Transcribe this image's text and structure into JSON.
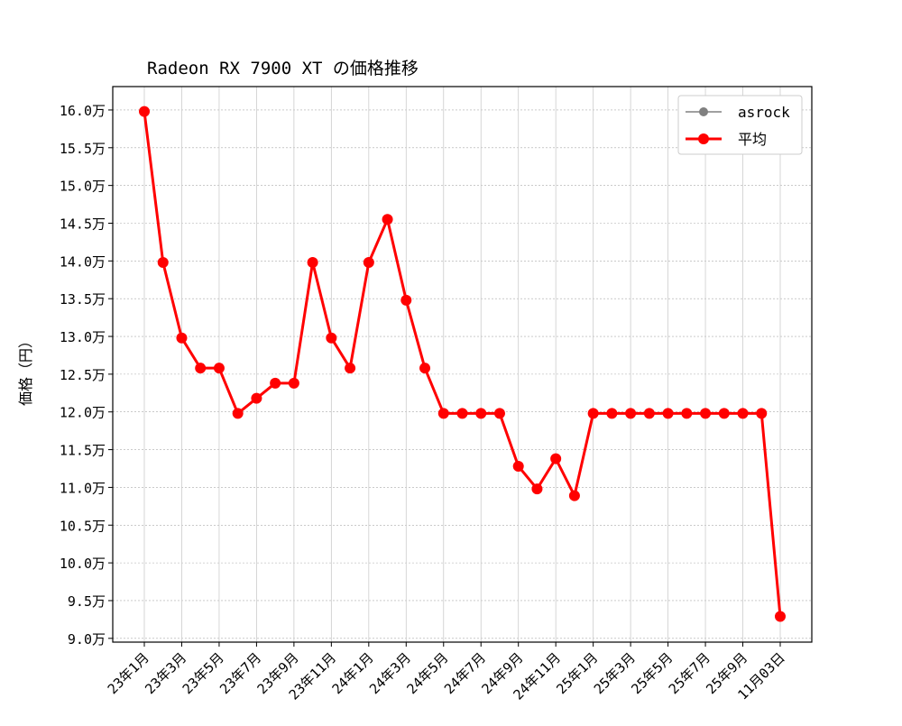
{
  "chart_data": {
    "type": "line",
    "title": "Radeon RX 7900 XT の価格推移",
    "xlabel": "",
    "ylabel": "価格（円）",
    "x": [
      "23年1月",
      "23年2月",
      "23年3月",
      "23年4月",
      "23年5月",
      "23年6月",
      "23年7月",
      "23年8月",
      "23年9月",
      "23年10月",
      "23年11月",
      "23年12月",
      "24年1月",
      "24年2月",
      "24年3月",
      "24年4月",
      "24年5月",
      "24年6月",
      "24年7月",
      "24年8月",
      "24年9月",
      "24年10月",
      "24年11月",
      "24年12月",
      "25年1月",
      "25年2月",
      "25年3月",
      "25年4月",
      "25年5月",
      "25年6月",
      "25年7月",
      "25年8月",
      "25年9月",
      "25年10月",
      "11月03日"
    ],
    "x_tick_labels": [
      "23年1月",
      "23年3月",
      "23年5月",
      "23年7月",
      "23年9月",
      "23年11月",
      "24年1月",
      "24年3月",
      "24年5月",
      "24年7月",
      "24年9月",
      "24年11月",
      "25年1月",
      "25年3月",
      "25年5月",
      "25年7月",
      "25年9月",
      "11月03日"
    ],
    "y_tick_labels": [
      "9.0万",
      "9.5万",
      "10.0万",
      "10.5万",
      "11.0万",
      "11.5万",
      "12.0万",
      "12.5万",
      "13.0万",
      "13.5万",
      "14.0万",
      "14.5万",
      "15.0万",
      "15.5万",
      "16.0万"
    ],
    "ylim": [
      8.95,
      16.31
    ],
    "y_unit": "万円",
    "grid": true,
    "legend_position": "top-right",
    "series": [
      {
        "name": "asrock",
        "color": "#808080",
        "values": [
          15.98,
          13.98,
          12.98,
          12.58,
          12.58,
          11.98,
          12.18,
          12.38,
          12.38,
          13.98,
          12.98,
          12.58,
          13.98,
          14.55,
          13.48,
          12.58,
          11.98,
          11.98,
          11.98,
          11.98,
          11.28,
          10.98,
          11.38,
          10.89,
          11.98,
          11.98,
          11.98,
          11.98,
          11.98,
          11.98,
          11.98,
          11.98,
          11.98,
          11.98,
          9.29
        ]
      },
      {
        "name": "平均",
        "color": "#ff0000",
        "values": [
          15.98,
          13.98,
          12.98,
          12.58,
          12.58,
          11.98,
          12.18,
          12.38,
          12.38,
          13.98,
          12.98,
          12.58,
          13.98,
          14.55,
          13.48,
          12.58,
          11.98,
          11.98,
          11.98,
          11.98,
          11.28,
          10.98,
          11.38,
          10.89,
          11.98,
          11.98,
          11.98,
          11.98,
          11.98,
          11.98,
          11.98,
          11.98,
          11.98,
          11.98,
          9.29
        ]
      }
    ]
  }
}
